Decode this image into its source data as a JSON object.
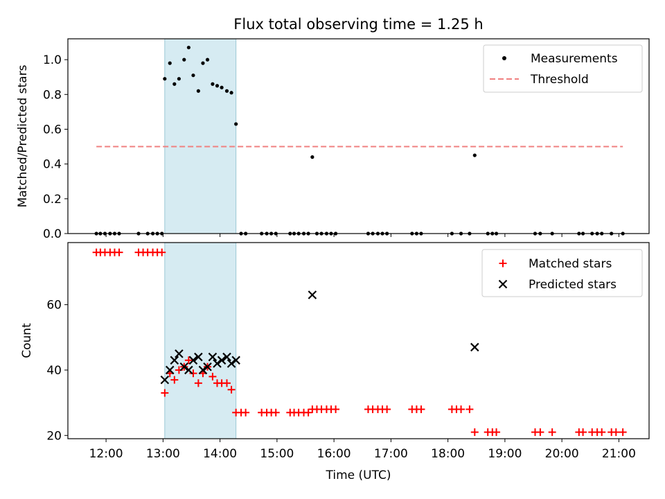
{
  "chart_data": [
    {
      "type": "scatter",
      "title": "Flux total observing time = 1.25 h",
      "xlabel": "",
      "ylabel": "Matched/Predicted stars",
      "xlim": [
        11.33,
        21.53
      ],
      "ylim": [
        0,
        1.12
      ],
      "yticks": [
        0.0,
        0.2,
        0.4,
        0.6,
        0.8,
        1.0
      ],
      "ytick_labels": [
        "0.0",
        "0.2",
        "0.4",
        "0.6",
        "0.8",
        "1.0"
      ],
      "shaded_span": [
        13.03,
        14.28
      ],
      "legend_position": "top-right",
      "series": [
        {
          "name": "Measurements",
          "marker": "dot",
          "color": "#000000",
          "x": [
            13.03,
            13.12,
            13.2,
            13.28,
            13.37,
            13.45,
            13.53,
            13.62,
            13.7,
            13.78,
            13.87,
            13.95,
            14.03,
            14.12,
            14.2,
            14.28,
            11.83,
            11.9,
            11.98,
            12.07,
            12.15,
            12.23,
            12.57,
            12.73,
            12.82,
            12.9,
            12.98,
            14.37,
            14.45,
            14.73,
            14.82,
            14.9,
            14.98,
            15.23,
            15.3,
            15.38,
            15.47,
            15.55,
            15.7,
            15.78,
            15.87,
            15.95,
            16.03,
            16.6,
            16.68,
            16.77,
            16.85,
            16.93,
            17.37,
            17.45,
            17.53,
            18.07,
            18.23,
            18.38,
            18.7,
            18.78,
            18.85,
            19.53,
            19.62,
            19.83,
            20.3,
            20.37,
            20.53,
            20.62,
            20.7,
            20.87,
            21.07
          ],
          "y": [
            0.89,
            0.98,
            0.86,
            0.89,
            1.0,
            1.07,
            0.91,
            0.82,
            0.98,
            1.0,
            0.86,
            0.85,
            0.84,
            0.82,
            0.81,
            0.63,
            0,
            0,
            0,
            0,
            0,
            0,
            0,
            0,
            0,
            0,
            0,
            0,
            0,
            0,
            0,
            0,
            0,
            0,
            0,
            0,
            0,
            0,
            0,
            0,
            0,
            0,
            0,
            0,
            0,
            0,
            0,
            0,
            0,
            0,
            0,
            0,
            0,
            0,
            0,
            0,
            0,
            0,
            0,
            0,
            0,
            0,
            0,
            0,
            0,
            0,
            0
          ]
        },
        {
          "name": "Measurements",
          "marker": "dot",
          "color": "#000000",
          "x": [
            15.62,
            18.47
          ],
          "y": [
            0.44,
            0.45
          ]
        }
      ],
      "threshold": {
        "name": "Threshold",
        "value": 0.5,
        "x_range": [
          11.83,
          21.07
        ],
        "color": "#f08080",
        "style": "dashed"
      }
    },
    {
      "type": "scatter",
      "xlabel": "Time (UTC)",
      "ylabel": "Count",
      "xlim": [
        11.33,
        21.53
      ],
      "ylim": [
        19,
        79
      ],
      "yticks": [
        20,
        40,
        60
      ],
      "ytick_labels": [
        "20",
        "40",
        "60"
      ],
      "xticks": [
        12,
        13,
        14,
        15,
        16,
        17,
        18,
        19,
        20,
        21
      ],
      "xtick_labels": [
        "12:00",
        "13:00",
        "14:00",
        "15:00",
        "16:00",
        "17:00",
        "18:00",
        "19:00",
        "20:00",
        "21:00"
      ],
      "shaded_span": [
        13.03,
        14.28
      ],
      "legend_position": "top-right",
      "series": [
        {
          "name": "Matched stars",
          "marker": "plus",
          "color": "#ff0000",
          "x": [
            11.83,
            11.9,
            11.98,
            12.07,
            12.15,
            12.23,
            12.57,
            12.65,
            12.73,
            12.82,
            12.9,
            12.98,
            13.03,
            13.12,
            13.2,
            13.28,
            13.37,
            13.45,
            13.53,
            13.62,
            13.7,
            13.78,
            13.87,
            13.95,
            14.03,
            14.12,
            14.2,
            14.28,
            14.37,
            14.45,
            14.73,
            14.82,
            14.9,
            14.98,
            15.23,
            15.3,
            15.38,
            15.47,
            15.55,
            15.62,
            15.7,
            15.78,
            15.87,
            15.95,
            16.03,
            16.6,
            16.68,
            16.77,
            16.85,
            16.93,
            17.37,
            17.45,
            17.53,
            18.07,
            18.15,
            18.23,
            18.38,
            18.47,
            18.7,
            18.78,
            18.85,
            19.53,
            19.62,
            19.83,
            20.3,
            20.37,
            20.53,
            20.62,
            20.7,
            20.87,
            20.95,
            21.07
          ],
          "y": [
            76,
            76,
            76,
            76,
            76,
            76,
            76,
            76,
            76,
            76,
            76,
            76,
            33,
            39,
            37,
            40,
            41,
            43,
            39,
            36,
            39,
            41,
            38,
            36,
            36,
            36,
            34,
            27,
            27,
            27,
            27,
            27,
            27,
            27,
            27,
            27,
            27,
            27,
            27,
            28,
            28,
            28,
            28,
            28,
            28,
            28,
            28,
            28,
            28,
            28,
            28,
            28,
            28,
            28,
            28,
            28,
            28,
            21,
            21,
            21,
            21,
            21,
            21,
            21,
            21,
            21,
            21,
            21,
            21,
            21,
            21,
            21
          ]
        },
        {
          "name": "Predicted stars",
          "marker": "x",
          "color": "#000000",
          "x": [
            13.03,
            13.12,
            13.2,
            13.28,
            13.37,
            13.45,
            13.53,
            13.62,
            13.7,
            13.78,
            13.87,
            13.95,
            14.03,
            14.12,
            14.2,
            14.28,
            15.62,
            18.47
          ],
          "y": [
            37,
            40,
            43,
            45,
            41,
            40,
            43,
            44,
            40,
            41,
            44,
            42,
            43,
            44,
            42,
            43,
            63,
            47
          ]
        }
      ]
    }
  ]
}
